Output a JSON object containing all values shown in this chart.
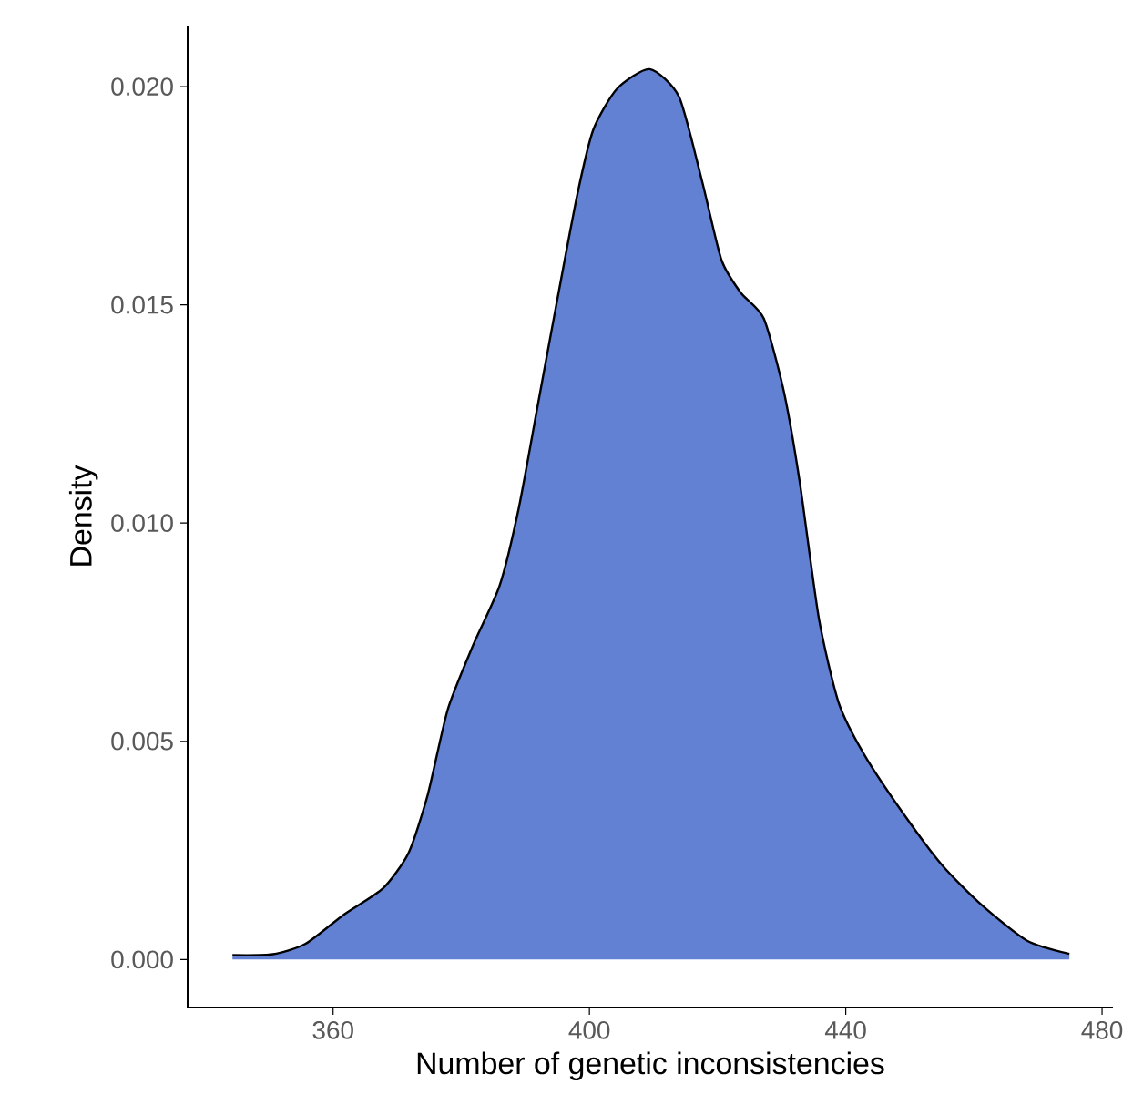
{
  "chart_data": {
    "type": "area",
    "xlabel": "Number of genetic inconsistencies",
    "ylabel": "Density",
    "x": [
      344.3,
      350.6,
      355.7,
      361.7,
      367.8,
      371.8,
      374.8,
      377.9,
      381.9,
      386.0,
      389.0,
      392.0,
      395.0,
      398.1,
      400.6,
      404.3,
      409.4,
      414.0,
      417.6,
      420.6,
      423.6,
      427.2,
      430.3,
      432.8,
      435.8,
      438.9,
      442.9,
      449.0,
      455.1,
      461.2,
      468.3,
      474.9
    ],
    "series": [
      {
        "color": "#6281d3",
        "values": [
          0.0001,
          0.00012,
          0.00036,
          0.00103,
          0.00163,
          0.00245,
          0.00379,
          0.00573,
          0.00722,
          0.00857,
          0.01036,
          0.01275,
          0.01513,
          0.01752,
          0.01901,
          0.01995,
          0.0204,
          0.01976,
          0.01782,
          0.01603,
          0.01528,
          0.01469,
          0.01304,
          0.01096,
          0.00782,
          0.00588,
          0.00469,
          0.00334,
          0.00215,
          0.00125,
          0.00043,
          0.00013
        ]
      }
    ],
    "xlim": [
      337.3,
      481.7
    ],
    "xticks": [
      360,
      400,
      440,
      480
    ],
    "ylim": [
      -0.0011,
      0.0214
    ],
    "yticks": [
      {
        "value": 0,
        "label": "0.000"
      },
      {
        "value": 0.005,
        "label": "0.005"
      },
      {
        "value": 0.01,
        "label": "0.010"
      },
      {
        "value": 0.015,
        "label": "0.015"
      },
      {
        "value": 0.02,
        "label": "0.020"
      }
    ],
    "grid": false
  }
}
